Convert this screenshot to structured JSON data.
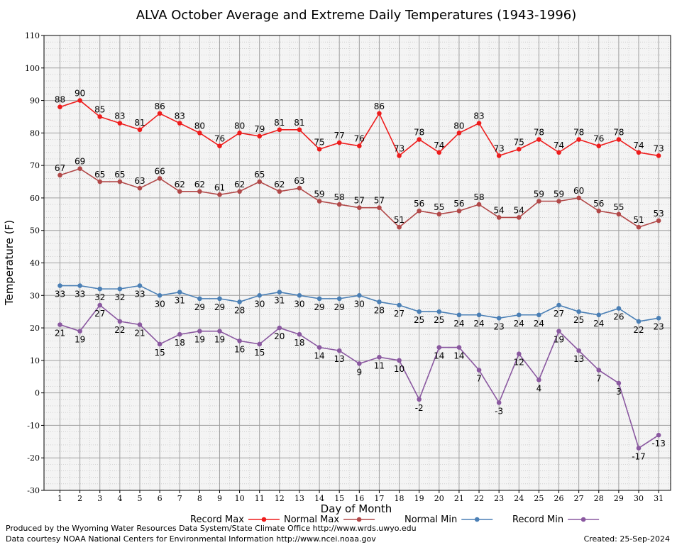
{
  "chart_data": {
    "type": "line",
    "title": "ALVA October Average and Extreme Daily Temperatures (1943-1996)",
    "xlabel": "Day of Month",
    "ylabel": "Temperature (F)",
    "ylim": [
      -30,
      110
    ],
    "yticks": [
      -30,
      -20,
      -10,
      0,
      10,
      20,
      30,
      40,
      50,
      60,
      70,
      80,
      90,
      100,
      110
    ],
    "x": [
      1,
      2,
      3,
      4,
      5,
      6,
      7,
      8,
      9,
      10,
      11,
      12,
      13,
      14,
      15,
      16,
      17,
      18,
      19,
      20,
      21,
      22,
      23,
      24,
      25,
      26,
      27,
      28,
      29,
      30,
      31
    ],
    "grid": true,
    "legend_position": "bottom",
    "series": [
      {
        "name": "Record Max",
        "color": "#ee1c1c",
        "label_pos": "above",
        "values": [
          88,
          90,
          85,
          83,
          81,
          86,
          83,
          80,
          76,
          80,
          79,
          81,
          81,
          75,
          77,
          76,
          86,
          73,
          78,
          74,
          80,
          83,
          73,
          75,
          78,
          74,
          78,
          76,
          78,
          74,
          73
        ]
      },
      {
        "name": "Normal Max",
        "color": "#b14848",
        "label_pos": "above",
        "values": [
          67,
          69,
          65,
          65,
          63,
          66,
          62,
          62,
          61,
          62,
          65,
          62,
          63,
          59,
          58,
          57,
          57,
          51,
          56,
          55,
          56,
          58,
          54,
          54,
          59,
          59,
          60,
          56,
          55,
          51,
          53
        ]
      },
      {
        "name": "Normal Min",
        "color": "#4a7fb5",
        "label_pos": "below",
        "values": [
          33,
          33,
          32,
          32,
          33,
          30,
          31,
          29,
          29,
          28,
          30,
          31,
          30,
          29,
          29,
          30,
          28,
          27,
          25,
          25,
          24,
          24,
          23,
          24,
          24,
          27,
          25,
          24,
          26,
          22,
          23
        ]
      },
      {
        "name": "Record Min",
        "color": "#8a58a0",
        "label_pos": "below",
        "values": [
          21,
          19,
          27,
          22,
          21,
          15,
          18,
          19,
          19,
          16,
          15,
          20,
          18,
          14,
          13,
          9,
          11,
          10,
          -2,
          14,
          14,
          7,
          -3,
          12,
          4,
          19,
          13,
          7,
          3,
          -17,
          -13
        ]
      }
    ]
  },
  "footer": {
    "produced_by": "Produced by the Wyoming Water Resources Data System/State Climate Office http://www.wrds.uwyo.edu",
    "courtesy": "Data courtesy NOAA National Centers for Environmental Information http://www.ncei.noaa.gov",
    "created": "Created: 25-Sep-2024"
  }
}
